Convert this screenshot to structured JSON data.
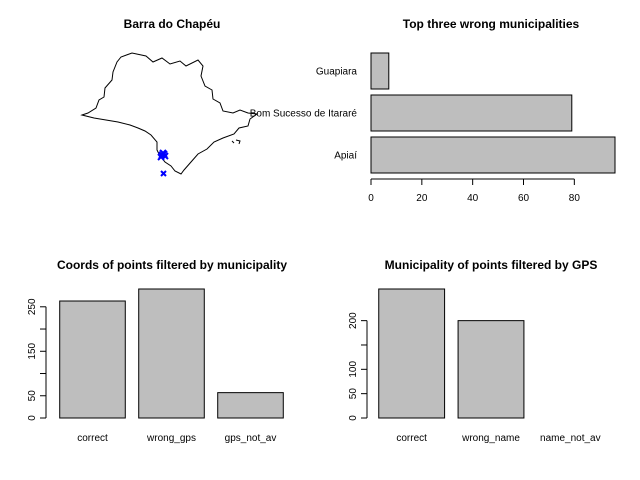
{
  "map_panel": {
    "title": "Barra do Chapéu",
    "point_color": "#0000ff",
    "outline_color": "#000000"
  },
  "chart_data": [
    {
      "type": "bar",
      "orientation": "horizontal",
      "title": "Top three wrong municipalities",
      "categories": [
        "Apiaí",
        "Bom Sucesso de Itararé",
        "Guapiara"
      ],
      "values": [
        96,
        79,
        7
      ],
      "xlim": [
        0,
        96
      ],
      "xticks": [
        0,
        20,
        40,
        60,
        80
      ],
      "bar_color": "#bebebe"
    },
    {
      "type": "bar",
      "title": "Coords of points filtered by municipality",
      "categories": [
        "correct",
        "wrong_gps",
        "gps_not_av"
      ],
      "values": [
        263,
        290,
        57
      ],
      "ylim": [
        0,
        290
      ],
      "yticks": [
        0,
        50,
        150,
        250
      ],
      "bar_color": "#bebebe"
    },
    {
      "type": "bar",
      "title": "Municipality of points filtered by GPS",
      "categories": [
        "correct",
        "wrong_name",
        "name_not_av"
      ],
      "values": [
        265,
        200,
        0
      ],
      "ylim": [
        0,
        265
      ],
      "yticks": [
        0,
        50,
        100,
        200
      ],
      "bar_color": "#bebebe"
    }
  ]
}
